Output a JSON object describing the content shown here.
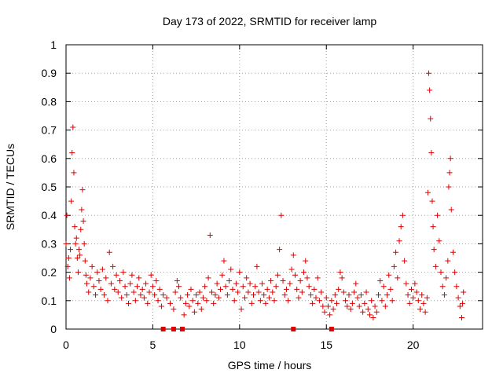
{
  "chart_data": {
    "type": "scatter",
    "title": "Day 173 of 2022, SRMTID for receiver lamp",
    "xlabel": "GPS time / hours",
    "ylabel": "SRMTID / TECUs",
    "xlim": [
      0,
      24
    ],
    "ylim": [
      0,
      1
    ],
    "xticks": [
      0,
      5,
      10,
      15,
      20
    ],
    "xtick_labels": [
      "0",
      "5",
      "10",
      "15",
      "20"
    ],
    "yticks": [
      0,
      0.1,
      0.2,
      0.3,
      0.4,
      0.5,
      0.6,
      0.7,
      0.8,
      0.9,
      1
    ],
    "ytick_labels": [
      "0",
      "0.1",
      "0.2",
      "0.3",
      "0.4",
      "0.5",
      "0.6",
      "0.7",
      "0.8",
      "0.9",
      "1"
    ],
    "grid": true,
    "marker": "plus",
    "color": "#e00000",
    "series": [
      {
        "name": "SRMTID",
        "points": [
          [
            0.0,
            0.3
          ],
          [
            0.05,
            0.4
          ],
          [
            0.1,
            0.22
          ],
          [
            0.15,
            0.25
          ],
          [
            0.2,
            0.18
          ],
          [
            0.25,
            0.28
          ],
          [
            0.3,
            0.45
          ],
          [
            0.35,
            0.62
          ],
          [
            0.4,
            0.71
          ],
          [
            0.45,
            0.55
          ],
          [
            0.5,
            0.36
          ],
          [
            0.55,
            0.3
          ],
          [
            0.6,
            0.32
          ],
          [
            0.65,
            0.25
          ],
          [
            0.7,
            0.2
          ],
          [
            0.75,
            0.28
          ],
          [
            0.8,
            0.26
          ],
          [
            0.85,
            0.35
          ],
          [
            0.9,
            0.42
          ],
          [
            0.95,
            0.49
          ],
          [
            1.0,
            0.38
          ],
          [
            1.05,
            0.3
          ],
          [
            1.1,
            0.24
          ],
          [
            1.15,
            0.19
          ],
          [
            1.2,
            0.16
          ],
          [
            1.3,
            0.13
          ],
          [
            1.4,
            0.18
          ],
          [
            1.5,
            0.22
          ],
          [
            1.6,
            0.15
          ],
          [
            1.7,
            0.12
          ],
          [
            1.8,
            0.2
          ],
          [
            1.9,
            0.17
          ],
          [
            2.0,
            0.14
          ],
          [
            2.1,
            0.21
          ],
          [
            2.2,
            0.12
          ],
          [
            2.3,
            0.18
          ],
          [
            2.4,
            0.1
          ],
          [
            2.5,
            0.27
          ],
          [
            2.6,
            0.16
          ],
          [
            2.7,
            0.22
          ],
          [
            2.8,
            0.14
          ],
          [
            2.9,
            0.19
          ],
          [
            3.0,
            0.13
          ],
          [
            3.1,
            0.17
          ],
          [
            3.2,
            0.11
          ],
          [
            3.3,
            0.2
          ],
          [
            3.4,
            0.15
          ],
          [
            3.5,
            0.12
          ],
          [
            3.6,
            0.09
          ],
          [
            3.7,
            0.16
          ],
          [
            3.8,
            0.19
          ],
          [
            3.9,
            0.13
          ],
          [
            4.0,
            0.1
          ],
          [
            4.1,
            0.15
          ],
          [
            4.2,
            0.18
          ],
          [
            4.3,
            0.12
          ],
          [
            4.4,
            0.14
          ],
          [
            4.5,
            0.11
          ],
          [
            4.6,
            0.16
          ],
          [
            4.7,
            0.09
          ],
          [
            4.8,
            0.13
          ],
          [
            4.9,
            0.19
          ],
          [
            5.0,
            0.15
          ],
          [
            5.1,
            0.12
          ],
          [
            5.2,
            0.17
          ],
          [
            5.3,
            0.1
          ],
          [
            5.4,
            0.14
          ],
          [
            5.5,
            0.08
          ],
          [
            5.6,
            0.12
          ],
          [
            5.8,
            0.11
          ],
          [
            6.0,
            0.09
          ],
          [
            6.2,
            0.07
          ],
          [
            6.3,
            0.13
          ],
          [
            6.4,
            0.17
          ],
          [
            6.5,
            0.15
          ],
          [
            6.6,
            0.11
          ],
          [
            6.8,
            0.05
          ],
          [
            6.9,
            0.09
          ],
          [
            7.0,
            0.12
          ],
          [
            7.1,
            0.08
          ],
          [
            7.2,
            0.14
          ],
          [
            7.3,
            0.1
          ],
          [
            7.4,
            0.06
          ],
          [
            7.5,
            0.12
          ],
          [
            7.6,
            0.09
          ],
          [
            7.7,
            0.13
          ],
          [
            7.8,
            0.07
          ],
          [
            7.9,
            0.11
          ],
          [
            8.0,
            0.15
          ],
          [
            8.1,
            0.1
          ],
          [
            8.2,
            0.18
          ],
          [
            8.3,
            0.33
          ],
          [
            8.4,
            0.13
          ],
          [
            8.5,
            0.09
          ],
          [
            8.6,
            0.12
          ],
          [
            8.7,
            0.16
          ],
          [
            8.8,
            0.11
          ],
          [
            8.9,
            0.14
          ],
          [
            9.0,
            0.19
          ],
          [
            9.1,
            0.24
          ],
          [
            9.2,
            0.15
          ],
          [
            9.3,
            0.12
          ],
          [
            9.4,
            0.17
          ],
          [
            9.5,
            0.21
          ],
          [
            9.6,
            0.14
          ],
          [
            9.7,
            0.1
          ],
          [
            9.8,
            0.16
          ],
          [
            9.9,
            0.13
          ],
          [
            10.0,
            0.2
          ],
          [
            10.1,
            0.07
          ],
          [
            10.2,
            0.15
          ],
          [
            10.3,
            0.11
          ],
          [
            10.4,
            0.18
          ],
          [
            10.5,
            0.13
          ],
          [
            10.6,
            0.16
          ],
          [
            10.7,
            0.09
          ],
          [
            10.8,
            0.12
          ],
          [
            10.9,
            0.15
          ],
          [
            11.0,
            0.22
          ],
          [
            11.1,
            0.13
          ],
          [
            11.2,
            0.1
          ],
          [
            11.3,
            0.16
          ],
          [
            11.4,
            0.12
          ],
          [
            11.5,
            0.09
          ],
          [
            11.6,
            0.14
          ],
          [
            11.7,
            0.11
          ],
          [
            11.8,
            0.17
          ],
          [
            11.9,
            0.13
          ],
          [
            12.0,
            0.1
          ],
          [
            12.1,
            0.15
          ],
          [
            12.2,
            0.19
          ],
          [
            12.3,
            0.28
          ],
          [
            12.4,
            0.4
          ],
          [
            12.5,
            0.17
          ],
          [
            12.6,
            0.12
          ],
          [
            12.7,
            0.14
          ],
          [
            12.8,
            0.1
          ],
          [
            12.9,
            0.16
          ],
          [
            13.0,
            0.21
          ],
          [
            13.1,
            0.26
          ],
          [
            13.2,
            0.19
          ],
          [
            13.3,
            0.14
          ],
          [
            13.4,
            0.11
          ],
          [
            13.5,
            0.17
          ],
          [
            13.6,
            0.13
          ],
          [
            13.7,
            0.2
          ],
          [
            13.8,
            0.24
          ],
          [
            13.9,
            0.18
          ],
          [
            14.0,
            0.15
          ],
          [
            14.1,
            0.12
          ],
          [
            14.2,
            0.09
          ],
          [
            14.3,
            0.14
          ],
          [
            14.4,
            0.11
          ],
          [
            14.5,
            0.18
          ],
          [
            14.6,
            0.1
          ],
          [
            14.7,
            0.13
          ],
          [
            14.8,
            0.08
          ],
          [
            14.9,
            0.06
          ],
          [
            15.0,
            0.11
          ],
          [
            15.1,
            0.08
          ],
          [
            15.2,
            0.05
          ],
          [
            15.3,
            0.1
          ],
          [
            15.4,
            0.07
          ],
          [
            15.5,
            0.12
          ],
          [
            15.6,
            0.09
          ],
          [
            15.7,
            0.14
          ],
          [
            15.8,
            0.2
          ],
          [
            15.9,
            0.18
          ],
          [
            16.0,
            0.13
          ],
          [
            16.1,
            0.1
          ],
          [
            16.2,
            0.08
          ],
          [
            16.3,
            0.12
          ],
          [
            16.4,
            0.07
          ],
          [
            16.5,
            0.09
          ],
          [
            16.6,
            0.13
          ],
          [
            16.7,
            0.16
          ],
          [
            16.8,
            0.11
          ],
          [
            16.9,
            0.08
          ],
          [
            17.0,
            0.12
          ],
          [
            17.1,
            0.06
          ],
          [
            17.2,
            0.09
          ],
          [
            17.3,
            0.13
          ],
          [
            17.4,
            0.07
          ],
          [
            17.5,
            0.05
          ],
          [
            17.6,
            0.1
          ],
          [
            17.7,
            0.04
          ],
          [
            17.8,
            0.08
          ],
          [
            17.9,
            0.06
          ],
          [
            18.0,
            0.12
          ],
          [
            18.1,
            0.17
          ],
          [
            18.2,
            0.1
          ],
          [
            18.3,
            0.15
          ],
          [
            18.4,
            0.08
          ],
          [
            18.5,
            0.12
          ],
          [
            18.6,
            0.19
          ],
          [
            18.7,
            0.14
          ],
          [
            18.8,
            0.1
          ],
          [
            18.9,
            0.22
          ],
          [
            19.0,
            0.27
          ],
          [
            19.1,
            0.18
          ],
          [
            19.2,
            0.31
          ],
          [
            19.3,
            0.36
          ],
          [
            19.4,
            0.4
          ],
          [
            19.5,
            0.24
          ],
          [
            19.6,
            0.16
          ],
          [
            19.7,
            0.12
          ],
          [
            19.8,
            0.09
          ],
          [
            19.9,
            0.14
          ],
          [
            20.0,
            0.11
          ],
          [
            20.1,
            0.16
          ],
          [
            20.2,
            0.13
          ],
          [
            20.3,
            0.1
          ],
          [
            20.4,
            0.07
          ],
          [
            20.5,
            0.12
          ],
          [
            20.6,
            0.09
          ],
          [
            20.7,
            0.06
          ],
          [
            20.8,
            0.11
          ],
          [
            20.85,
            0.48
          ],
          [
            20.9,
            0.9
          ],
          [
            20.95,
            0.84
          ],
          [
            21.0,
            0.74
          ],
          [
            21.05,
            0.62
          ],
          [
            21.1,
            0.45
          ],
          [
            21.15,
            0.36
          ],
          [
            21.2,
            0.28
          ],
          [
            21.3,
            0.22
          ],
          [
            21.4,
            0.4
          ],
          [
            21.5,
            0.31
          ],
          [
            21.6,
            0.2
          ],
          [
            21.7,
            0.15
          ],
          [
            21.8,
            0.12
          ],
          [
            21.9,
            0.18
          ],
          [
            22.0,
            0.24
          ],
          [
            22.05,
            0.5
          ],
          [
            22.1,
            0.55
          ],
          [
            22.15,
            0.6
          ],
          [
            22.2,
            0.42
          ],
          [
            22.3,
            0.27
          ],
          [
            22.4,
            0.2
          ],
          [
            22.5,
            0.15
          ],
          [
            22.6,
            0.11
          ],
          [
            22.7,
            0.08
          ],
          [
            22.8,
            0.04
          ],
          [
            22.85,
            0.09
          ],
          [
            22.9,
            0.13
          ]
        ]
      }
    ],
    "zero_markers": [
      5.6,
      6.2,
      6.7,
      13.1,
      15.3
    ]
  }
}
